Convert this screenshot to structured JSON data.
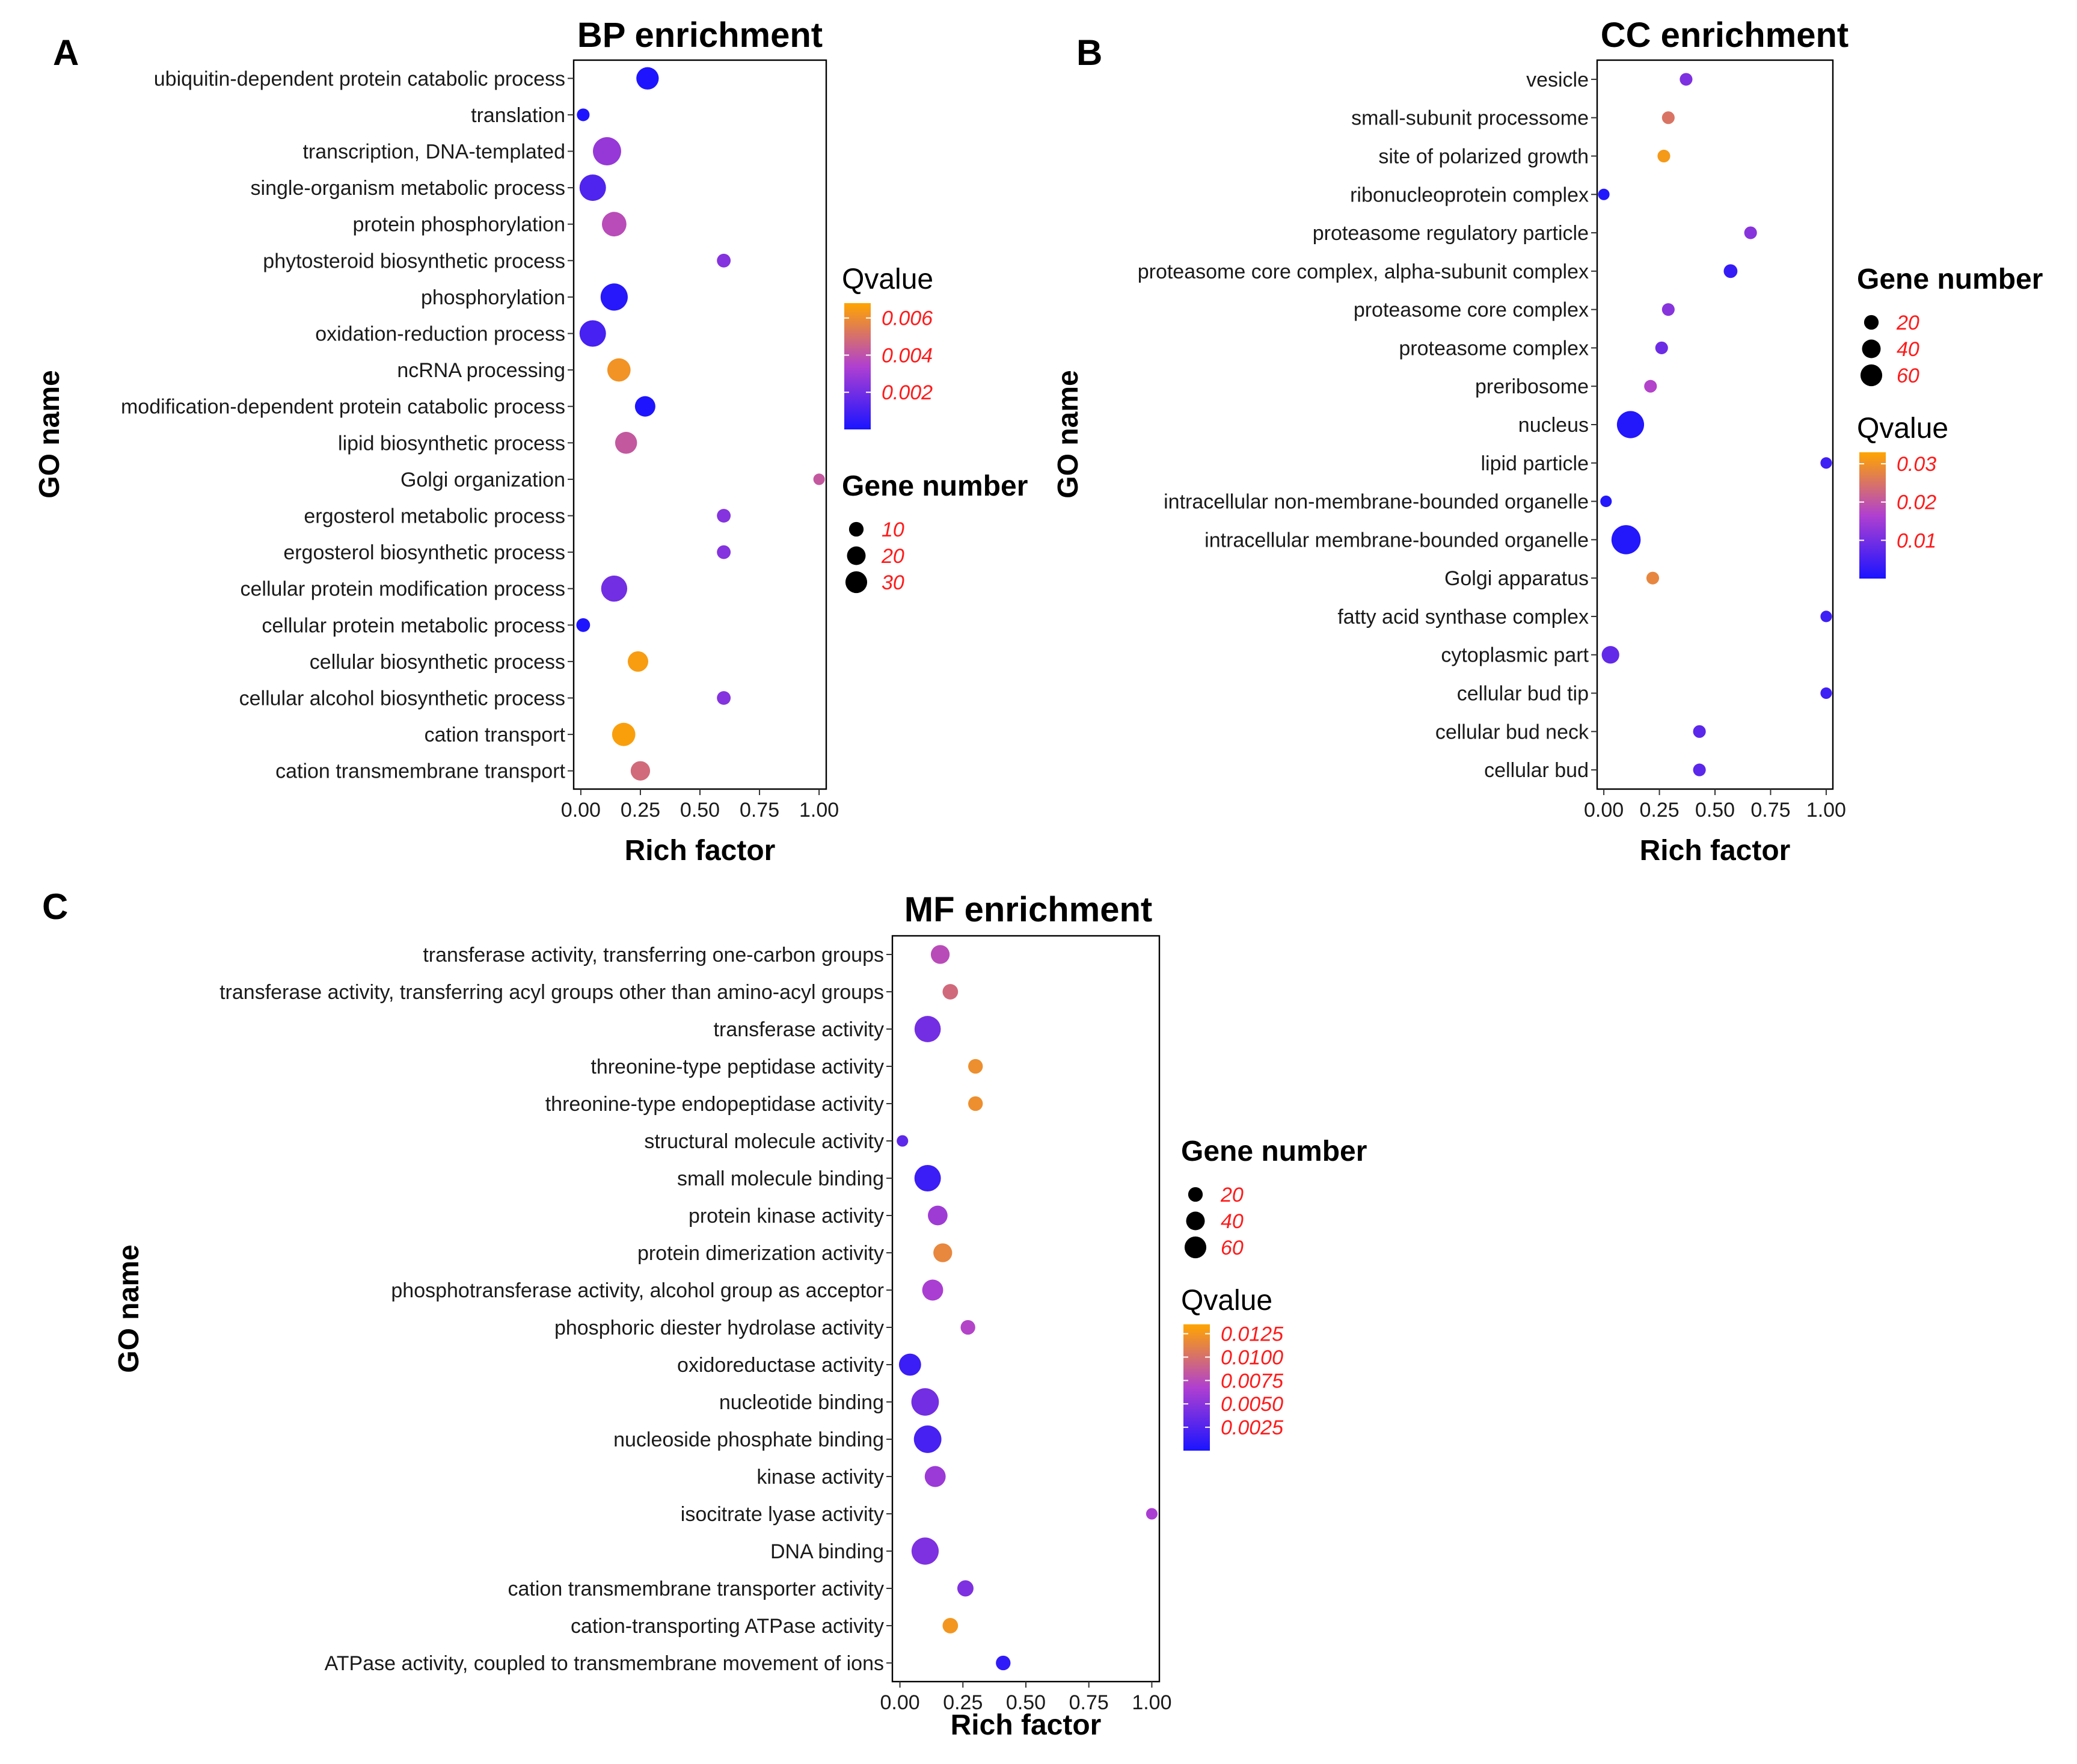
{
  "panel_labels": [
    "A",
    "B",
    "C"
  ],
  "ylabel_common": "GO name",
  "chart_data": [
    {
      "type": "scatter",
      "title": "BP enrichment",
      "xlabel": "Rich factor",
      "ylabel": "GO name",
      "xlim": [
        -0.03,
        1.03
      ],
      "xticks": [
        "0.00",
        "0.25",
        "0.50",
        "0.75",
        "1.00"
      ],
      "grid": false,
      "legend_position": "right",
      "color_legend": {
        "title": "Qvalue",
        "min": 0.0,
        "max": 0.0068,
        "ticks": [
          "0.006",
          "0.004",
          "0.002"
        ],
        "tick_values": [
          0.006,
          0.004,
          0.002
        ]
      },
      "size_legend": {
        "title": "Gene number",
        "ticks": [
          "10",
          "20",
          "30"
        ],
        "tick_values": [
          10,
          20,
          30
        ],
        "max": 35
      },
      "colors": {
        "low": "#1a14ff",
        "mid": "#b040d0",
        "high": "#ffa500"
      },
      "categories": [
        "ubiquitin-dependent protein catabolic process",
        "translation",
        "transcription, DNA-templated",
        "single-organism metabolic process",
        "protein phosphorylation",
        "phytosteroid biosynthetic process",
        "phosphorylation",
        "oxidation-reduction process",
        "ncRNA processing",
        "modification-dependent protein catabolic process",
        "lipid biosynthetic process",
        "Golgi organization",
        "ergosterol metabolic process",
        "ergosterol biosynthetic process",
        "cellular protein modification process",
        "cellular protein metabolic process",
        "cellular biosynthetic process",
        "cellular alcohol biosynthetic process",
        "cation transport",
        "cation transmembrane transport"
      ],
      "rich_factor": [
        0.28,
        0.01,
        0.11,
        0.05,
        0.14,
        0.6,
        0.14,
        0.05,
        0.16,
        0.27,
        0.19,
        1.0,
        0.6,
        0.6,
        0.14,
        0.01,
        0.24,
        0.6,
        0.18,
        0.25
      ],
      "gene_number": [
        18,
        3,
        33,
        28,
        23,
        4,
        30,
        28,
        20,
        14,
        17,
        2,
        4,
        4,
        27,
        4,
        14,
        4,
        20,
        12
      ],
      "qvalue": [
        0.0001,
        0.0001,
        0.0028,
        0.0012,
        0.0038,
        0.0024,
        0.0003,
        0.001,
        0.0062,
        0.0001,
        0.0042,
        0.0042,
        0.0024,
        0.0024,
        0.002,
        0.0001,
        0.0065,
        0.0024,
        0.0066,
        0.0048
      ]
    },
    {
      "type": "scatter",
      "title": "CC enrichment",
      "xlabel": "Rich factor",
      "ylabel": "GO name",
      "xlim": [
        -0.03,
        1.03
      ],
      "xticks": [
        "0.00",
        "0.25",
        "0.50",
        "0.75",
        "1.00"
      ],
      "grid": false,
      "legend_position": "right",
      "size_legend": {
        "title": "Gene number",
        "ticks": [
          "20",
          "40",
          "60"
        ],
        "tick_values": [
          20,
          40,
          60
        ],
        "max": 70
      },
      "color_legend": {
        "title": "Qvalue",
        "min": 0.0,
        "max": 0.033,
        "ticks": [
          "0.03",
          "0.02",
          "0.01"
        ],
        "tick_values": [
          0.03,
          0.02,
          0.01
        ]
      },
      "colors": {
        "low": "#1a14ff",
        "mid": "#b040d0",
        "high": "#ffa500"
      },
      "categories": [
        "vesicle",
        "small-subunit processome",
        "site of polarized growth",
        "ribonucleoprotein complex",
        "proteasome regulatory particle",
        "proteasome core complex, alpha-subunit complex",
        "proteasome core complex",
        "proteasome complex",
        "preribosome",
        "nucleus",
        "lipid particle",
        "intracellular non-membrane-bounded organelle",
        "intracellular membrane-bounded organelle",
        "Golgi apparatus",
        "fatty acid synthase complex",
        "cytoplasmic part",
        "cellular bud tip",
        "cellular bud neck",
        "cellular bud"
      ],
      "rich_factor": [
        0.37,
        0.29,
        0.27,
        0.0,
        0.66,
        0.57,
        0.29,
        0.26,
        0.21,
        0.12,
        1.0,
        0.01,
        0.1,
        0.22,
        1.0,
        0.03,
        1.0,
        0.43,
        0.43
      ],
      "gene_number": [
        6,
        6,
        6,
        4,
        6,
        8,
        6,
        6,
        6,
        60,
        4,
        4,
        72,
        6,
        4,
        18,
        4,
        6,
        6
      ],
      "qvalue": [
        0.011,
        0.025,
        0.031,
        0.001,
        0.012,
        0.003,
        0.012,
        0.009,
        0.017,
        0.001,
        0.004,
        0.001,
        0.001,
        0.028,
        0.004,
        0.008,
        0.004,
        0.007,
        0.007
      ]
    },
    {
      "type": "scatter",
      "title": "MF enrichment",
      "xlabel": "Rich factor",
      "ylabel": "GO name",
      "xlim": [
        -0.03,
        1.03
      ],
      "xticks": [
        "0.00",
        "0.25",
        "0.50",
        "0.75",
        "1.00"
      ],
      "grid": false,
      "legend_position": "right",
      "size_legend": {
        "title": "Gene number",
        "ticks": [
          "20",
          "40",
          "60"
        ],
        "tick_values": [
          20,
          40,
          60
        ],
        "max": 70
      },
      "color_legend": {
        "title": "Qvalue",
        "min": 0.0,
        "max": 0.0135,
        "ticks": [
          "0.0125",
          "0.0100",
          "0.0075",
          "0.0050",
          "0.0025"
        ],
        "tick_values": [
          0.0125,
          0.01,
          0.0075,
          0.005,
          0.0025
        ]
      },
      "colors": {
        "low": "#1a14ff",
        "mid": "#b040d0",
        "high": "#ffa500"
      },
      "categories": [
        "transferase activity, transferring one-carbon groups",
        "transferase activity, transferring acyl groups other than amino-acyl groups",
        "transferase activity",
        "threonine-type peptidase activity",
        "threonine-type endopeptidase activity",
        "structural molecule activity",
        "small molecule binding",
        "protein kinase activity",
        "protein dimerization activity",
        "phosphotransferase activity, alcohol group as acceptor",
        "phosphoric diester hydrolase activity",
        "oxidoreductase activity",
        "nucleotide binding",
        "nucleoside phosphate binding",
        "kinase activity",
        "isocitrate lyase activity",
        "DNA binding",
        "cation transmembrane transporter activity",
        "cation-transporting ATPase activity",
        "ATPase activity, coupled to transmembrane movement of ions"
      ],
      "rich_factor": [
        0.16,
        0.2,
        0.11,
        0.3,
        0.3,
        0.01,
        0.11,
        0.15,
        0.17,
        0.13,
        0.27,
        0.04,
        0.1,
        0.11,
        0.14,
        1.0,
        0.1,
        0.26,
        0.2,
        0.41
      ],
      "gene_number": [
        22,
        12,
        55,
        10,
        10,
        4,
        56,
        25,
        22,
        30,
        10,
        35,
        62,
        62,
        30,
        4,
        60,
        14,
        12,
        10
      ],
      "qvalue": [
        0.0075,
        0.0095,
        0.004,
        0.012,
        0.012,
        0.003,
        0.0015,
        0.006,
        0.0115,
        0.0065,
        0.007,
        0.0015,
        0.004,
        0.002,
        0.0058,
        0.0065,
        0.0045,
        0.0045,
        0.0125,
        0.001
      ]
    }
  ]
}
